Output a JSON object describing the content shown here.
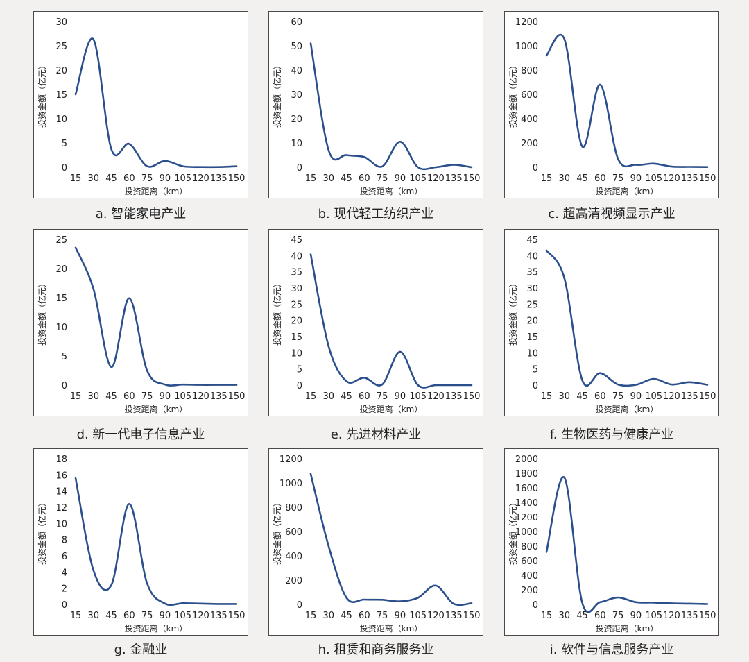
{
  "chart_data": [
    {
      "type": "line",
      "caption": "a. 智能家电产业",
      "xlabel": "投资距离（km）",
      "ylabel": "投资金额（亿元）",
      "x": [
        15,
        30,
        45,
        60,
        75,
        90,
        105,
        120,
        135,
        150
      ],
      "ylim": [
        0,
        30
      ],
      "yticks": [
        0,
        5,
        10,
        15,
        20,
        25,
        30
      ],
      "values": [
        15,
        26.3,
        3.7,
        4.8,
        0.2,
        1.3,
        0.2,
        0.05,
        0.05,
        0.2
      ],
      "color": "#2b4f8c"
    },
    {
      "type": "line",
      "caption": "b. 现代轻工纺织产业",
      "xlabel": "投资距离（km）",
      "ylabel": "投资金额（亿元）",
      "x": [
        15,
        30,
        45,
        60,
        75,
        90,
        105,
        120,
        135,
        150
      ],
      "ylim": [
        0,
        60
      ],
      "yticks": [
        0,
        10,
        20,
        30,
        40,
        50,
        60
      ],
      "values": [
        51,
        7,
        5,
        4.2,
        0.3,
        10.5,
        0,
        0,
        1,
        0
      ],
      "color": "#2b4f8c"
    },
    {
      "type": "line",
      "caption": "c. 超高清视频显示产业",
      "xlabel": "投资距离（km）",
      "ylabel": "投资金额（亿元）",
      "x": [
        15,
        30,
        45,
        60,
        75,
        90,
        105,
        120,
        135,
        150
      ],
      "ylim": [
        0,
        1200
      ],
      "yticks": [
        0,
        200,
        400,
        600,
        800,
        1000,
        1200
      ],
      "values": [
        920,
        1055,
        170,
        680,
        70,
        20,
        30,
        5,
        3,
        2
      ],
      "color": "#2b4f8c"
    },
    {
      "type": "line",
      "caption": "d. 新一代电子信息产业",
      "xlabel": "投资距离（km）",
      "ylabel": "投资金额（亿元）",
      "x": [
        15,
        30,
        45,
        60,
        75,
        90,
        105,
        120,
        135,
        150
      ],
      "ylim": [
        0,
        25
      ],
      "yticks": [
        0,
        5,
        10,
        15,
        20,
        25
      ],
      "values": [
        23.6,
        16.5,
        3.1,
        14.9,
        2.5,
        0.1,
        0.1,
        0.05,
        0.05,
        0.05
      ],
      "color": "#2b4f8c"
    },
    {
      "type": "line",
      "caption": "e. 先进材料产业",
      "xlabel": "投资距离（km）",
      "ylabel": "投资金额（亿元）",
      "x": [
        15,
        30,
        45,
        60,
        75,
        90,
        105,
        120,
        135,
        150
      ],
      "ylim": [
        0,
        45
      ],
      "yticks": [
        0,
        5,
        10,
        15,
        20,
        25,
        30,
        35,
        40,
        45
      ],
      "values": [
        40.4,
        12,
        1.2,
        2.3,
        0.2,
        10.3,
        0,
        0,
        0,
        0
      ],
      "color": "#2b4f8c"
    },
    {
      "type": "line",
      "caption": "f. 生物医药与健康产业",
      "xlabel": "投资距离（km）",
      "ylabel": "投资金额（亿元）",
      "x": [
        15,
        30,
        45,
        60,
        75,
        90,
        105,
        120,
        135,
        150
      ],
      "ylim": [
        0,
        45
      ],
      "yticks": [
        0,
        5,
        10,
        15,
        20,
        25,
        30,
        35,
        40,
        45
      ],
      "values": [
        41.6,
        33,
        1.5,
        3.7,
        0.2,
        0.1,
        1.9,
        0.2,
        0.9,
        0.1
      ],
      "color": "#2b4f8c"
    },
    {
      "type": "line",
      "caption": "g. 金融业",
      "xlabel": "投资距离（km）",
      "ylabel": "投资金额（亿元）",
      "x": [
        15,
        30,
        45,
        60,
        75,
        90,
        105,
        120,
        135,
        150
      ],
      "ylim": [
        0,
        18
      ],
      "yticks": [
        0,
        2,
        4,
        6,
        8,
        10,
        12,
        14,
        16,
        18
      ],
      "values": [
        15.6,
        4.2,
        2.4,
        12.4,
        2.6,
        0.1,
        0.15,
        0.1,
        0.05,
        0.05
      ],
      "color": "#2b4f8c"
    },
    {
      "type": "line",
      "caption": "h. 租赁和商务服务业",
      "xlabel": "投资距离（km）",
      "ylabel": "投资金额（亿元）",
      "x": [
        15,
        30,
        45,
        60,
        75,
        90,
        105,
        120,
        135,
        150
      ],
      "ylim": [
        0,
        1200
      ],
      "yticks": [
        0,
        200,
        400,
        600,
        800,
        1000,
        1200
      ],
      "values": [
        1075,
        480,
        55,
        40,
        38,
        25,
        55,
        155,
        5,
        10
      ],
      "color": "#2b4f8c"
    },
    {
      "type": "line",
      "caption": "i. 软件与信息服务产业",
      "xlabel": "投资距离（km）",
      "ylabel": "投资金额（亿元）",
      "x": [
        15,
        30,
        45,
        60,
        75,
        90,
        105,
        120,
        135,
        150
      ],
      "ylim": [
        0,
        2000
      ],
      "yticks": [
        0,
        200,
        400,
        600,
        800,
        1000,
        1200,
        1400,
        1600,
        1800,
        2000
      ],
      "values": [
        720,
        1740,
        20,
        30,
        95,
        30,
        25,
        15,
        10,
        5
      ],
      "color": "#2b4f8c"
    }
  ]
}
